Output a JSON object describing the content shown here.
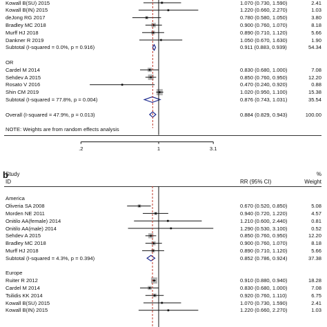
{
  "panel_a": {
    "rows": [
      {
        "kind": "study",
        "label": "Kowall B(SU) 2015",
        "ci_text": "1.070 (0.730, 1.590)",
        "weight": "2.41",
        "rr": 1.07,
        "lo": 0.73,
        "hi": 1.59
      },
      {
        "kind": "study",
        "label": "Kowall B(IN) 2015",
        "ci_text": "1.220 (0.660, 2.270)",
        "weight": "1.03",
        "rr": 1.22,
        "lo": 0.66,
        "hi": 2.27
      },
      {
        "kind": "study",
        "label": "deJong RG 2017",
        "ci_text": "0.780 (0.580, 1.050)",
        "weight": "3.80",
        "rr": 0.78,
        "lo": 0.58,
        "hi": 1.05
      },
      {
        "kind": "study",
        "label": "Bradley MC 2018",
        "ci_text": "0.900 (0.760, 1.070)",
        "weight": "8.18",
        "rr": 0.9,
        "lo": 0.76,
        "hi": 1.07
      },
      {
        "kind": "study",
        "label": "Murff HJ 2018",
        "ci_text": "0.890 (0.710, 1.120)",
        "weight": "5.66",
        "rr": 0.89,
        "lo": 0.71,
        "hi": 1.12
      },
      {
        "kind": "study",
        "label": "Dankner R 2019",
        "ci_text": "1.050 (0.670, 1.630)",
        "weight": "1.90",
        "rr": 1.05,
        "lo": 0.67,
        "hi": 1.63
      },
      {
        "kind": "subtotal",
        "label": "Subtotal  (I-squared = 0.0%, p = 0.916)",
        "ci_text": "0.911 (0.883, 0.939)",
        "weight": "54.34",
        "rr": 0.911,
        "lo": 0.883,
        "hi": 0.939
      },
      {
        "kind": "blank"
      },
      {
        "kind": "group",
        "label": "OR"
      },
      {
        "kind": "study",
        "label": "Cardel M 2014",
        "ci_text": "0.830 (0.680, 1.000)",
        "weight": "7.08",
        "rr": 0.83,
        "lo": 0.68,
        "hi": 1.0
      },
      {
        "kind": "study",
        "label": "Sehdev A 2015",
        "ci_text": "0.850 (0.760, 0.950)",
        "weight": "12.20",
        "rr": 0.85,
        "lo": 0.76,
        "hi": 0.95
      },
      {
        "kind": "study",
        "label": "Rosato V 2016",
        "ci_text": "0.470 (0.240, 0.920)",
        "weight": "0.88",
        "rr": 0.47,
        "lo": 0.24,
        "hi": 0.92
      },
      {
        "kind": "study",
        "label": "Shin CM 2019",
        "ci_text": "1.020 (0.950, 1.100)",
        "weight": "15.38",
        "rr": 1.02,
        "lo": 0.95,
        "hi": 1.1
      },
      {
        "kind": "subtotal",
        "label": "Subtotal  (I-squared = 77.8%, p = 0.004)",
        "ci_text": "0.876 (0.743, 1.031)",
        "weight": "35.54",
        "rr": 0.876,
        "lo": 0.743,
        "hi": 1.031
      },
      {
        "kind": "blank"
      },
      {
        "kind": "overall",
        "label": "Overall  (I-squared = 47.9%, p = 0.013)",
        "ci_text": "0.884 (0.829, 0.943)",
        "weight": "100.00",
        "rr": 0.884,
        "lo": 0.829,
        "hi": 0.943
      },
      {
        "kind": "blank"
      },
      {
        "kind": "note",
        "label": "NOTE: Weights are from random effects analysis"
      }
    ],
    "axis_ticks": [
      ".2",
      "1",
      "3.1"
    ]
  },
  "panel_b": {
    "letter": "b",
    "study_header": "Study",
    "id_header": "ID",
    "rr_header": "RR (95% CI)",
    "pct_header": "%",
    "weight_header": "Weight",
    "rows": [
      {
        "kind": "blank"
      },
      {
        "kind": "group",
        "label": "America"
      },
      {
        "kind": "study",
        "label": "Oliveria SA 2008",
        "ci_text": "0.670 (0.520, 0.850)",
        "weight": "5.08",
        "rr": 0.67,
        "lo": 0.52,
        "hi": 0.85
      },
      {
        "kind": "study",
        "label": "Morden NE 2011",
        "ci_text": "0.940 (0.720, 1.220)",
        "weight": "4.57",
        "rr": 0.94,
        "lo": 0.72,
        "hi": 1.22
      },
      {
        "kind": "study",
        "label": "Onitilo AA(female) 2014",
        "ci_text": "1.210 (0.600, 2.440)",
        "weight": "0.81",
        "rr": 1.21,
        "lo": 0.6,
        "hi": 2.44
      },
      {
        "kind": "study",
        "label": "Onitilo AA(male) 2014",
        "ci_text": "1.290 (0.530, 3.100)",
        "weight": "0.52",
        "rr": 1.29,
        "lo": 0.53,
        "hi": 3.1
      },
      {
        "kind": "study",
        "label": "Sehdev A 2015",
        "ci_text": "0.850 (0.760, 0.950)",
        "weight": "12.20",
        "rr": 0.85,
        "lo": 0.76,
        "hi": 0.95
      },
      {
        "kind": "study",
        "label": "Bradley MC 2018",
        "ci_text": "0.900 (0.760, 1.070)",
        "weight": "8.18",
        "rr": 0.9,
        "lo": 0.76,
        "hi": 1.07
      },
      {
        "kind": "study",
        "label": "Murff HJ 2018",
        "ci_text": "0.890 (0.710, 1.120)",
        "weight": "5.66",
        "rr": 0.89,
        "lo": 0.71,
        "hi": 1.12
      },
      {
        "kind": "subtotal",
        "label": "Subtotal  (I-squared = 4.3%, p = 0.394)",
        "ci_text": "0.852 (0.786, 0.924)",
        "weight": "37.38",
        "rr": 0.852,
        "lo": 0.786,
        "hi": 0.924
      },
      {
        "kind": "blank"
      },
      {
        "kind": "group",
        "label": "Europe"
      },
      {
        "kind": "study",
        "label": "Ruiter R 2012",
        "ci_text": "0.910 (0.880, 0.940)",
        "weight": "18.28",
        "rr": 0.91,
        "lo": 0.88,
        "hi": 0.94
      },
      {
        "kind": "study",
        "label": "Cardel M 2014",
        "ci_text": "0.830 (0.680, 1.000)",
        "weight": "7.08",
        "rr": 0.83,
        "lo": 0.68,
        "hi": 1.0
      },
      {
        "kind": "study",
        "label": "Tsilidis KK 2014",
        "ci_text": "0.920 (0.760, 1.110)",
        "weight": "6.75",
        "rr": 0.92,
        "lo": 0.76,
        "hi": 1.11
      },
      {
        "kind": "study",
        "label": "Kowall B(SU) 2015",
        "ci_text": "1.070 (0.730, 1.590)",
        "weight": "2.41",
        "rr": 1.07,
        "lo": 0.73,
        "hi": 1.59
      },
      {
        "kind": "study",
        "label": "Kowall B(IN) 2015",
        "ci_text": "1.220 (0.660, 2.270)",
        "weight": "1.03",
        "rr": 1.22,
        "lo": 0.66,
        "hi": 2.27
      }
    ]
  },
  "chart_data": [
    {
      "type": "scatter",
      "subtype": "forest-plot",
      "x_scale": "log",
      "x_tick_labels": [
        ".2",
        "1",
        "3.1"
      ],
      "reference_line": 1,
      "overall_line": 0.884,
      "groups": [
        {
          "name": "",
          "studies": [
            {
              "study": "Kowall B(SU) 2015",
              "rr": 1.07,
              "lo": 0.73,
              "hi": 1.59,
              "weight": 2.41
            },
            {
              "study": "Kowall B(IN) 2015",
              "rr": 1.22,
              "lo": 0.66,
              "hi": 2.27,
              "weight": 1.03
            },
            {
              "study": "deJong RG 2017",
              "rr": 0.78,
              "lo": 0.58,
              "hi": 1.05,
              "weight": 3.8
            },
            {
              "study": "Bradley MC 2018",
              "rr": 0.9,
              "lo": 0.76,
              "hi": 1.07,
              "weight": 8.18
            },
            {
              "study": "Murff HJ 2018",
              "rr": 0.89,
              "lo": 0.71,
              "hi": 1.12,
              "weight": 5.66
            },
            {
              "study": "Dankner R 2019",
              "rr": 1.05,
              "lo": 0.67,
              "hi": 1.63,
              "weight": 1.9
            }
          ],
          "subtotal": {
            "rr": 0.911,
            "lo": 0.883,
            "hi": 0.939,
            "weight": 54.34,
            "i_squared": "0.0%",
            "p": 0.916
          }
        },
        {
          "name": "OR",
          "studies": [
            {
              "study": "Cardel M 2014",
              "rr": 0.83,
              "lo": 0.68,
              "hi": 1.0,
              "weight": 7.08
            },
            {
              "study": "Sehdev A 2015",
              "rr": 0.85,
              "lo": 0.76,
              "hi": 0.95,
              "weight": 12.2
            },
            {
              "study": "Rosato V 2016",
              "rr": 0.47,
              "lo": 0.24,
              "hi": 0.92,
              "weight": 0.88
            },
            {
              "study": "Shin CM 2019",
              "rr": 1.02,
              "lo": 0.95,
              "hi": 1.1,
              "weight": 15.38
            }
          ],
          "subtotal": {
            "rr": 0.876,
            "lo": 0.743,
            "hi": 1.031,
            "weight": 35.54,
            "i_squared": "77.8%",
            "p": 0.004
          }
        }
      ],
      "overall": {
        "rr": 0.884,
        "lo": 0.829,
        "hi": 0.943,
        "weight": 100.0,
        "i_squared": "47.9%",
        "p": 0.013
      }
    },
    {
      "type": "scatter",
      "subtype": "forest-plot",
      "x_scale": "log",
      "reference_line": 1,
      "columns": [
        "Study ID",
        "RR (95% CI)",
        "% Weight"
      ],
      "groups": [
        {
          "name": "America",
          "studies": [
            {
              "study": "Oliveria SA 2008",
              "rr": 0.67,
              "lo": 0.52,
              "hi": 0.85,
              "weight": 5.08
            },
            {
              "study": "Morden NE 2011",
              "rr": 0.94,
              "lo": 0.72,
              "hi": 1.22,
              "weight": 4.57
            },
            {
              "study": "Onitilo AA(female) 2014",
              "rr": 1.21,
              "lo": 0.6,
              "hi": 2.44,
              "weight": 0.81
            },
            {
              "study": "Onitilo AA(male) 2014",
              "rr": 1.29,
              "lo": 0.53,
              "hi": 3.1,
              "weight": 0.52
            },
            {
              "study": "Sehdev A 2015",
              "rr": 0.85,
              "lo": 0.76,
              "hi": 0.95,
              "weight": 12.2
            },
            {
              "study": "Bradley MC 2018",
              "rr": 0.9,
              "lo": 0.76,
              "hi": 1.07,
              "weight": 8.18
            },
            {
              "study": "Murff HJ 2018",
              "rr": 0.89,
              "lo": 0.71,
              "hi": 1.12,
              "weight": 5.66
            }
          ],
          "subtotal": {
            "rr": 0.852,
            "lo": 0.786,
            "hi": 0.924,
            "weight": 37.38,
            "i_squared": "4.3%",
            "p": 0.394
          }
        },
        {
          "name": "Europe",
          "studies": [
            {
              "study": "Ruiter R 2012",
              "rr": 0.91,
              "lo": 0.88,
              "hi": 0.94,
              "weight": 18.28
            },
            {
              "study": "Cardel M 2014",
              "rr": 0.83,
              "lo": 0.68,
              "hi": 1.0,
              "weight": 7.08
            },
            {
              "study": "Tsilidis KK 2014",
              "rr": 0.92,
              "lo": 0.76,
              "hi": 1.11,
              "weight": 6.75
            },
            {
              "study": "Kowall B(SU) 2015",
              "rr": 1.07,
              "lo": 0.73,
              "hi": 1.59,
              "weight": 2.41
            },
            {
              "study": "Kowall B(IN) 2015",
              "rr": 1.22,
              "lo": 0.66,
              "hi": 2.27,
              "weight": 1.03
            }
          ]
        }
      ]
    }
  ]
}
